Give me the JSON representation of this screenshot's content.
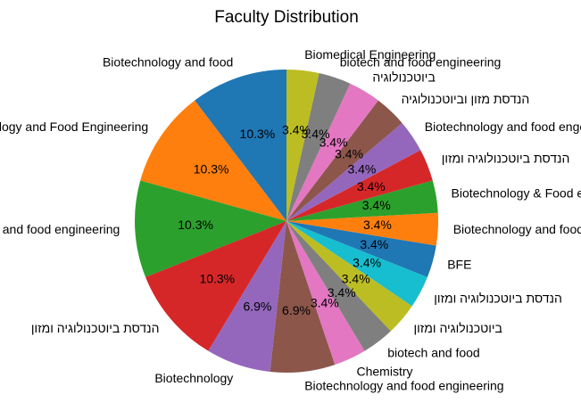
{
  "chart_data": {
    "type": "pie",
    "title": "Faculty Distribution",
    "start_angle_deg": 90,
    "direction": "counterclockwise",
    "legend": "none",
    "slices": [
      {
        "label": "Biotechnology and food",
        "value": 3,
        "percent_label": "10.3%",
        "color": "#1f77b4"
      },
      {
        "label": "Biotechnology and Food Engineering",
        "value": 3,
        "percent_label": "10.3%",
        "color": "#ff7f0e"
      },
      {
        "label": "biotechnology and food engineering",
        "value": 3,
        "percent_label": "10.3%",
        "color": "#2ca02c"
      },
      {
        "label": "הנדסת ביוטכנולוגיה ומזון",
        "value": 3,
        "percent_label": "10.3%",
        "color": "#d62728"
      },
      {
        "label": "Biotechnology",
        "value": 2,
        "percent_label": "6.9%",
        "color": "#9467bd"
      },
      {
        "label": "Biotechnology and food engineering",
        "value": 2,
        "percent_label": "6.9%",
        "color": "#8c564b"
      },
      {
        "label": "Chemistry",
        "value": 1,
        "percent_label": "3.4%",
        "color": "#e377c2"
      },
      {
        "label": "biotech and food",
        "value": 1,
        "percent_label": "3.4%",
        "color": "#7f7f7f"
      },
      {
        "label": "ביוטכנולוגיה ומזון",
        "value": 1,
        "percent_label": "3.4%",
        "color": "#bcbd22"
      },
      {
        "label": "הנדסת ביוטכנולוגיה ומזון",
        "value": 1,
        "percent_label": "3.4%",
        "color": "#17becf"
      },
      {
        "label": "BFE",
        "value": 1,
        "percent_label": "3.4%",
        "color": "#1f77b4"
      },
      {
        "label": "Biotechnology and food",
        "value": 1,
        "percent_label": "3.4%",
        "color": "#ff7f0e"
      },
      {
        "label": "Biotechnology & Food engineering",
        "value": 1,
        "percent_label": "3.4%",
        "color": "#2ca02c"
      },
      {
        "label": "הנדסת ביוטכנולוגיה ומזון",
        "value": 1,
        "percent_label": "3.4%",
        "color": "#d62728"
      },
      {
        "label": "Biotechnology and food engeneering",
        "value": 1,
        "percent_label": "3.4%",
        "color": "#9467bd"
      },
      {
        "label": "הנדסת מזון וביוטכנולוגיה",
        "value": 1,
        "percent_label": "3.4%",
        "color": "#8c564b"
      },
      {
        "label": "ביוטכנולוגיה",
        "value": 1,
        "percent_label": "3.4%",
        "color": "#e377c2"
      },
      {
        "label": "biotech and food engineering",
        "value": 1,
        "percent_label": "3.4%",
        "color": "#7f7f7f"
      },
      {
        "label": "Biomedical Engineering",
        "value": 1,
        "percent_label": "3.4%",
        "color": "#bcbd22"
      }
    ]
  }
}
